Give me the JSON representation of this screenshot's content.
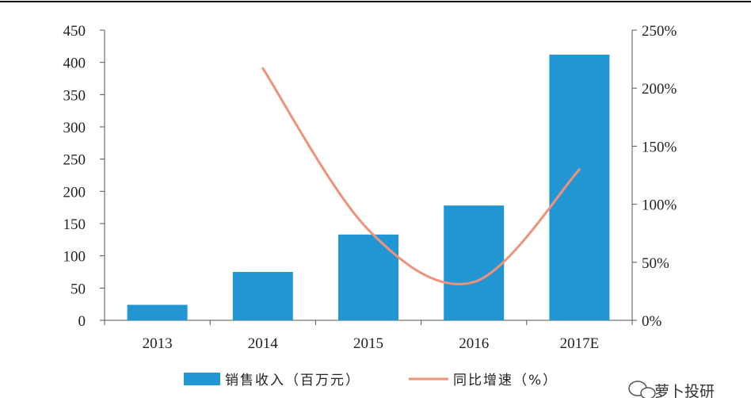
{
  "chart_data": {
    "type": "bar",
    "categories": [
      "2013",
      "2014",
      "2015",
      "2016",
      "2017E"
    ],
    "series": [
      {
        "name": "销售收入（百万元）",
        "type": "bar",
        "axis": "left",
        "color": "#2196D3",
        "values": [
          24,
          75,
          133,
          178,
          412
        ]
      },
      {
        "name": "同比增速（%）",
        "type": "line",
        "axis": "right",
        "color": "#F0917A",
        "values": [
          null,
          2.17,
          0.78,
          0.33,
          1.3
        ]
      }
    ],
    "y_left": {
      "min": 0,
      "max": 450,
      "ticks": [
        "0",
        "50",
        "100",
        "150",
        "200",
        "250",
        "300",
        "350",
        "400",
        "450"
      ]
    },
    "y_right": {
      "min": 0,
      "max": 2.5,
      "ticks": [
        "0%",
        "50%",
        "100%",
        "150%",
        "200%",
        "250%"
      ]
    },
    "legend_position": "bottom",
    "grid": false
  },
  "watermark": {
    "text": "萝卜投研",
    "icon": "wechat-icon"
  }
}
